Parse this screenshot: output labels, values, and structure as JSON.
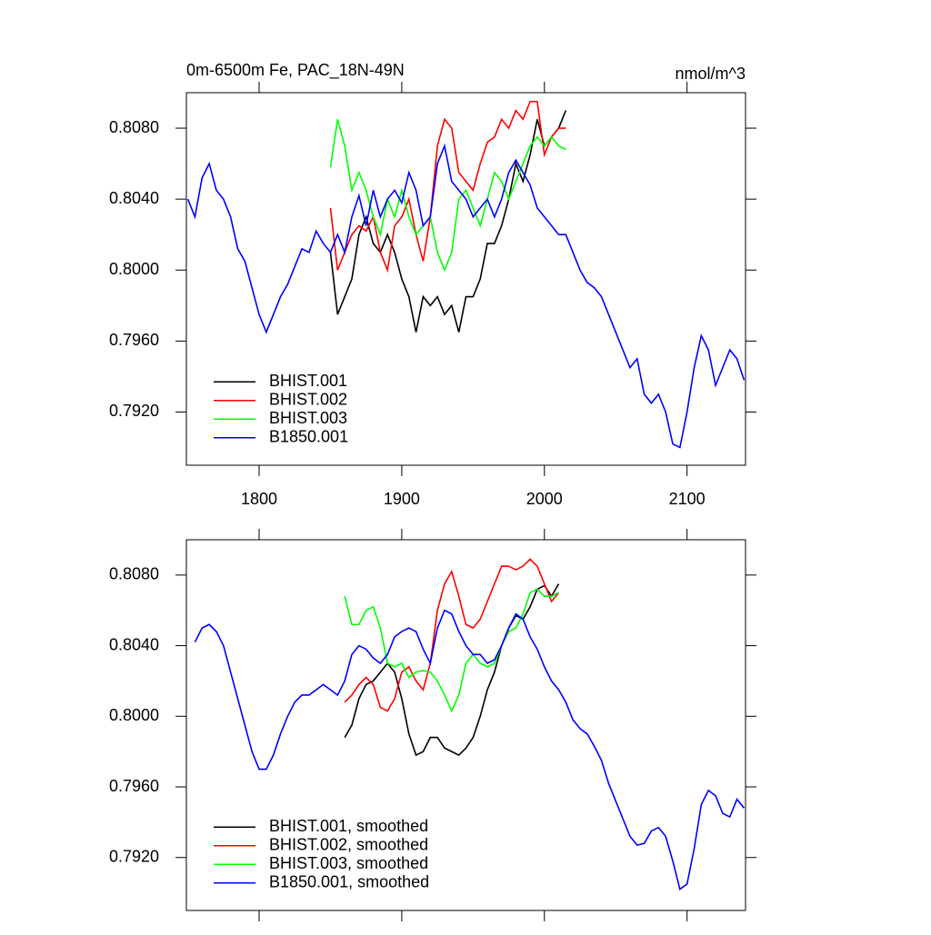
{
  "chart_data": [
    {
      "type": "line",
      "title": "0m-6500m Fe, PAC_18N-49N",
      "units": "nmol/m^3",
      "xlim": [
        1749,
        2141
      ],
      "ylim": [
        0.789,
        0.81
      ],
      "xticks": [
        1800,
        1900,
        2000,
        2100
      ],
      "x_tick_labels": true,
      "yticks": [
        {
          "value": 0.792,
          "label": "0.7920"
        },
        {
          "value": 0.796,
          "label": "0.7960"
        },
        {
          "value": 0.8,
          "label": "0.8000"
        },
        {
          "value": 0.804,
          "label": "0.8040"
        },
        {
          "value": 0.808,
          "label": "0.8080"
        }
      ],
      "legend": "lower left",
      "series": [
        {
          "name": "BHIST.001",
          "color": "#000000",
          "x": [
            1850,
            1855,
            1860,
            1865,
            1870,
            1875,
            1880,
            1885,
            1890,
            1895,
            1900,
            1905,
            1910,
            1915,
            1920,
            1925,
            1930,
            1935,
            1940,
            1945,
            1950,
            1955,
            1960,
            1965,
            1970,
            1975,
            1980,
            1985,
            1990,
            1995,
            2000,
            2005,
            2010,
            2015
          ],
          "values": [
            0.801,
            0.7975,
            0.7985,
            0.7995,
            0.802,
            0.803,
            0.8015,
            0.801,
            0.802,
            0.801,
            0.7995,
            0.7985,
            0.7965,
            0.7985,
            0.798,
            0.7985,
            0.7975,
            0.798,
            0.7965,
            0.7985,
            0.7985,
            0.7995,
            0.8015,
            0.8015,
            0.8025,
            0.804,
            0.806,
            0.805,
            0.8065,
            0.8085,
            0.807,
            0.8075,
            0.808,
            0.809
          ]
        },
        {
          "name": "BHIST.002",
          "color": "#ff0000",
          "x": [
            1850,
            1855,
            1860,
            1865,
            1870,
            1875,
            1880,
            1885,
            1890,
            1895,
            1900,
            1905,
            1910,
            1915,
            1920,
            1925,
            1930,
            1935,
            1940,
            1945,
            1950,
            1955,
            1960,
            1965,
            1970,
            1975,
            1980,
            1985,
            1990,
            1995,
            2000,
            2005,
            2010,
            2015
          ],
          "values": [
            0.8035,
            0.8,
            0.801,
            0.802,
            0.8025,
            0.8022,
            0.803,
            0.801,
            0.8,
            0.8025,
            0.803,
            0.804,
            0.802,
            0.8005,
            0.803,
            0.807,
            0.8085,
            0.808,
            0.8055,
            0.805,
            0.8045,
            0.806,
            0.8072,
            0.8075,
            0.8085,
            0.808,
            0.809,
            0.8085,
            0.8095,
            0.8095,
            0.8065,
            0.8075,
            0.808,
            0.808
          ]
        },
        {
          "name": "BHIST.003",
          "color": "#00ff00",
          "x": [
            1850,
            1855,
            1860,
            1865,
            1870,
            1875,
            1880,
            1885,
            1890,
            1895,
            1900,
            1905,
            1910,
            1915,
            1920,
            1925,
            1930,
            1935,
            1940,
            1945,
            1950,
            1955,
            1960,
            1965,
            1970,
            1975,
            1980,
            1985,
            1990,
            1995,
            2000,
            2005,
            2010,
            2015
          ],
          "values": [
            0.8058,
            0.8085,
            0.807,
            0.8045,
            0.8055,
            0.8045,
            0.803,
            0.802,
            0.804,
            0.803,
            0.8045,
            0.803,
            0.802,
            0.8025,
            0.803,
            0.801,
            0.8,
            0.801,
            0.804,
            0.8045,
            0.8035,
            0.8025,
            0.804,
            0.8055,
            0.805,
            0.804,
            0.805,
            0.806,
            0.807,
            0.8075,
            0.807,
            0.8075,
            0.807,
            0.8068
          ]
        },
        {
          "name": "B1850.001",
          "color": "#0000ff",
          "x": [
            1750,
            1755,
            1760,
            1765,
            1770,
            1775,
            1780,
            1785,
            1790,
            1795,
            1800,
            1805,
            1810,
            1815,
            1820,
            1825,
            1830,
            1835,
            1840,
            1845,
            1850,
            1855,
            1860,
            1865,
            1870,
            1875,
            1880,
            1885,
            1890,
            1895,
            1900,
            1905,
            1910,
            1915,
            1920,
            1925,
            1930,
            1935,
            1940,
            1945,
            1950,
            1955,
            1960,
            1965,
            1970,
            1975,
            1980,
            1985,
            1990,
            1995,
            2000,
            2005,
            2010,
            2015,
            2020,
            2025,
            2030,
            2035,
            2040,
            2045,
            2050,
            2055,
            2060,
            2065,
            2070,
            2075,
            2080,
            2085,
            2090,
            2095,
            2100,
            2105,
            2110,
            2115,
            2120,
            2125,
            2130,
            2135,
            2140
          ],
          "values": [
            0.804,
            0.803,
            0.8052,
            0.806,
            0.8045,
            0.804,
            0.803,
            0.8012,
            0.8005,
            0.799,
            0.7975,
            0.7965,
            0.7975,
            0.7985,
            0.7992,
            0.8002,
            0.8012,
            0.801,
            0.8022,
            0.8015,
            0.801,
            0.802,
            0.801,
            0.803,
            0.8042,
            0.8025,
            0.8045,
            0.803,
            0.804,
            0.8045,
            0.8038,
            0.8055,
            0.8045,
            0.8025,
            0.803,
            0.806,
            0.807,
            0.805,
            0.8045,
            0.804,
            0.803,
            0.8035,
            0.804,
            0.803,
            0.804,
            0.8055,
            0.8062,
            0.8055,
            0.8048,
            0.8035,
            0.803,
            0.8025,
            0.802,
            0.802,
            0.801,
            0.8,
            0.7993,
            0.799,
            0.7985,
            0.7975,
            0.7965,
            0.7955,
            0.7945,
            0.795,
            0.793,
            0.7925,
            0.793,
            0.792,
            0.7902,
            0.79,
            0.792,
            0.7945,
            0.7963,
            0.7955,
            0.7935,
            0.7945,
            0.7955,
            0.795,
            0.7938
          ]
        }
      ]
    },
    {
      "type": "line",
      "xlim": [
        1749,
        2141
      ],
      "ylim": [
        0.789,
        0.81
      ],
      "xticks": [
        1800,
        1900,
        2000,
        2100
      ],
      "x_tick_labels": false,
      "yticks": [
        {
          "value": 0.792,
          "label": "0.7920"
        },
        {
          "value": 0.796,
          "label": "0.7960"
        },
        {
          "value": 0.8,
          "label": "0.8000"
        },
        {
          "value": 0.804,
          "label": "0.8040"
        },
        {
          "value": 0.808,
          "label": "0.8080"
        }
      ],
      "legend": "lower left",
      "series": [
        {
          "name": "BHIST.001, smoothed",
          "color": "#000000",
          "x": [
            1860,
            1865,
            1870,
            1875,
            1880,
            1885,
            1890,
            1895,
            1900,
            1905,
            1910,
            1915,
            1920,
            1925,
            1930,
            1935,
            1940,
            1945,
            1950,
            1955,
            1960,
            1965,
            1970,
            1975,
            1980,
            1985,
            1990,
            1995,
            2000,
            2005,
            2010
          ],
          "values": [
            0.7988,
            0.7995,
            0.801,
            0.8018,
            0.802,
            0.8025,
            0.803,
            0.8025,
            0.801,
            0.799,
            0.7978,
            0.798,
            0.7988,
            0.7988,
            0.7982,
            0.798,
            0.7978,
            0.7982,
            0.7988,
            0.8,
            0.8015,
            0.8025,
            0.804,
            0.805,
            0.8057,
            0.8055,
            0.8062,
            0.8072,
            0.8074,
            0.8068,
            0.8075
          ]
        },
        {
          "name": "BHIST.002, smoothed",
          "color": "#ff0000",
          "x": [
            1860,
            1865,
            1870,
            1875,
            1880,
            1885,
            1890,
            1895,
            1900,
            1905,
            1910,
            1915,
            1920,
            1925,
            1930,
            1935,
            1940,
            1945,
            1950,
            1955,
            1960,
            1965,
            1970,
            1975,
            1980,
            1985,
            1990,
            1995,
            2000,
            2005,
            2010
          ],
          "values": [
            0.8008,
            0.8012,
            0.8018,
            0.8022,
            0.8018,
            0.8005,
            0.8003,
            0.801,
            0.8025,
            0.8028,
            0.802,
            0.8015,
            0.803,
            0.806,
            0.8075,
            0.8082,
            0.8068,
            0.8052,
            0.805,
            0.8055,
            0.8065,
            0.8075,
            0.8085,
            0.8085,
            0.8083,
            0.8085,
            0.8089,
            0.8085,
            0.8075,
            0.8065,
            0.807
          ]
        },
        {
          "name": "BHIST.003, smoothed",
          "color": "#00ff00",
          "x": [
            1860,
            1865,
            1870,
            1875,
            1880,
            1885,
            1890,
            1895,
            1900,
            1905,
            1910,
            1915,
            1920,
            1925,
            1930,
            1935,
            1940,
            1945,
            1950,
            1955,
            1960,
            1965,
            1970,
            1975,
            1980,
            1985,
            1990,
            1995,
            2000,
            2005,
            2010
          ],
          "values": [
            0.8068,
            0.8052,
            0.8052,
            0.806,
            0.8062,
            0.805,
            0.803,
            0.8028,
            0.803,
            0.8022,
            0.8025,
            0.8026,
            0.8025,
            0.802,
            0.8012,
            0.8003,
            0.8012,
            0.803,
            0.8035,
            0.803,
            0.8028,
            0.803,
            0.804,
            0.8048,
            0.805,
            0.8058,
            0.807,
            0.8072,
            0.8068,
            0.8068,
            0.807
          ]
        },
        {
          "name": "B1850.001, smoothed",
          "color": "#0000ff",
          "x": [
            1755,
            1760,
            1765,
            1770,
            1775,
            1780,
            1785,
            1790,
            1795,
            1800,
            1805,
            1810,
            1815,
            1820,
            1825,
            1830,
            1835,
            1840,
            1845,
            1850,
            1855,
            1860,
            1865,
            1870,
            1875,
            1880,
            1885,
            1890,
            1895,
            1900,
            1905,
            1910,
            1915,
            1920,
            1925,
            1930,
            1935,
            1940,
            1945,
            1950,
            1955,
            1960,
            1965,
            1970,
            1975,
            1980,
            1985,
            1990,
            1995,
            2000,
            2005,
            2010,
            2015,
            2020,
            2025,
            2030,
            2035,
            2040,
            2045,
            2050,
            2055,
            2060,
            2065,
            2070,
            2075,
            2080,
            2085,
            2090,
            2095,
            2100,
            2105,
            2110,
            2115,
            2120,
            2125,
            2130,
            2135,
            2140
          ],
          "values": [
            0.8042,
            0.805,
            0.8052,
            0.8048,
            0.804,
            0.8025,
            0.801,
            0.7995,
            0.798,
            0.797,
            0.797,
            0.7978,
            0.799,
            0.8,
            0.8008,
            0.8012,
            0.8012,
            0.8015,
            0.8018,
            0.8015,
            0.8012,
            0.802,
            0.8035,
            0.804,
            0.8038,
            0.8033,
            0.803,
            0.8035,
            0.8045,
            0.8048,
            0.805,
            0.8048,
            0.8038,
            0.803,
            0.805,
            0.806,
            0.8058,
            0.8048,
            0.804,
            0.8035,
            0.8035,
            0.803,
            0.8032,
            0.804,
            0.805,
            0.8058,
            0.8055,
            0.8045,
            0.8038,
            0.8028,
            0.802,
            0.8015,
            0.8008,
            0.7998,
            0.7993,
            0.799,
            0.7983,
            0.7975,
            0.7962,
            0.7952,
            0.7942,
            0.7932,
            0.7927,
            0.7928,
            0.7935,
            0.7937,
            0.7932,
            0.7918,
            0.7902,
            0.7905,
            0.7925,
            0.795,
            0.7958,
            0.7955,
            0.7945,
            0.7943,
            0.7953,
            0.7948
          ]
        }
      ]
    }
  ]
}
